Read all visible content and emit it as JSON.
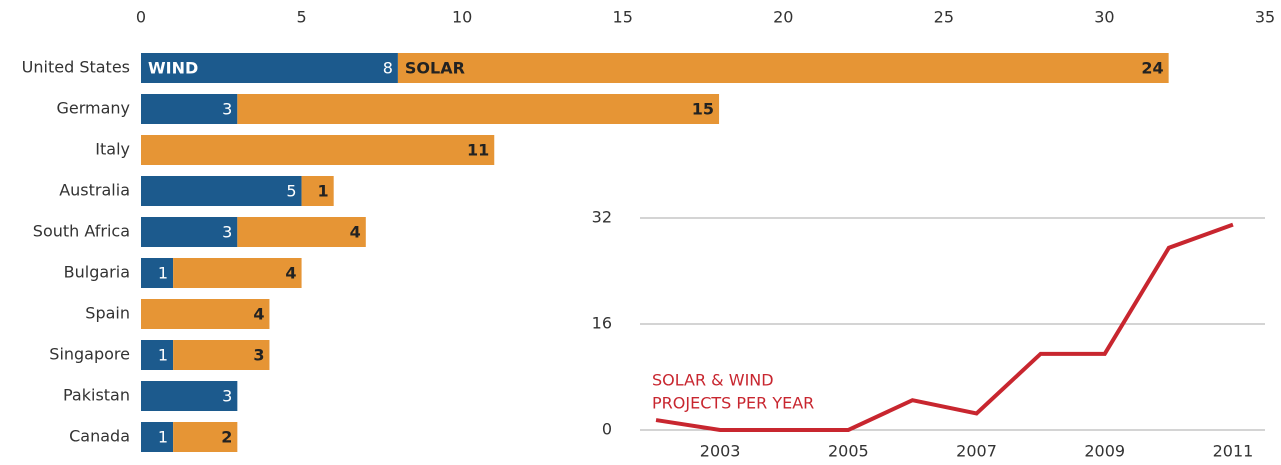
{
  "chart_data": [
    {
      "type": "stacked-bar-horizontal",
      "categories": [
        "United States",
        "Germany",
        "Italy",
        "Australia",
        "South Africa",
        "Bulgaria",
        "Spain",
        "Singapore",
        "Pakistan",
        "Canada"
      ],
      "series": [
        {
          "name": "WIND",
          "color": "#1c5a8d",
          "values": [
            8,
            3,
            null,
            5,
            3,
            1,
            null,
            1,
            3,
            1
          ]
        },
        {
          "name": "SOLAR",
          "color": "#e69535",
          "values": [
            24,
            15,
            11,
            1,
            4,
            4,
            4,
            3,
            null,
            2
          ]
        }
      ],
      "xlim": [
        0,
        35
      ],
      "xticks": [
        0,
        5,
        10,
        15,
        20,
        25,
        30,
        35
      ]
    },
    {
      "type": "line",
      "annotation": [
        "SOLAR & WIND",
        "PROJECTS PER YEAR"
      ],
      "x": [
        2002,
        2003,
        2004,
        2005,
        2006,
        2007,
        2008,
        2009,
        2010,
        2011
      ],
      "series": [
        {
          "name": "SOLAR & WIND PROJECTS PER YEAR",
          "color": "#c8262f",
          "values": [
            1.5,
            0,
            0,
            0,
            4.5,
            2.5,
            11.5,
            11.5,
            27.5,
            31
          ]
        }
      ],
      "xlim": [
        2001.75,
        2011.5
      ],
      "xticks": [
        2003,
        2005,
        2007,
        2009,
        2011
      ],
      "ylim": [
        0,
        32
      ],
      "yticks": [
        0,
        16,
        32
      ],
      "grid": true
    }
  ]
}
